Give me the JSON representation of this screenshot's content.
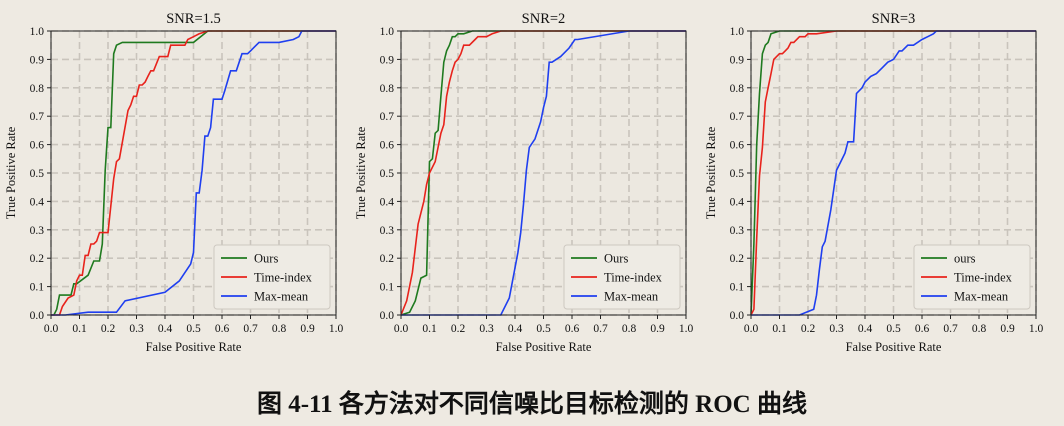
{
  "caption": "图 4-11 各方法对不同信噪比目标检测的 ROC 曲线",
  "chart_data": [
    {
      "type": "line",
      "title": "SNR=1.5",
      "xlabel": "False Positive Rate",
      "ylabel": "True Positive Rate",
      "xlim": [
        0,
        1
      ],
      "ylim": [
        0,
        1
      ],
      "xticks": [
        "0.0",
        "0.1",
        "0.2",
        "0.3",
        "0.4",
        "0.5",
        "0.6",
        "0.7",
        "0.8",
        "0.9",
        "1.0"
      ],
      "yticks": [
        "0.0",
        "0.1",
        "0.2",
        "0.3",
        "0.4",
        "0.5",
        "0.6",
        "0.7",
        "0.8",
        "0.9",
        "1.0"
      ],
      "grid": true,
      "legend_position": "lower-right",
      "series": [
        {
          "name": "Ours",
          "color": "#1f7a1f",
          "x": [
            0.0,
            0.01,
            0.02,
            0.03,
            0.07,
            0.08,
            0.09,
            0.13,
            0.15,
            0.17,
            0.18,
            0.19,
            0.2,
            0.21,
            0.22,
            0.23,
            0.25,
            0.5,
            0.55,
            1.0
          ],
          "y": [
            0.0,
            0.0,
            0.02,
            0.07,
            0.07,
            0.11,
            0.11,
            0.14,
            0.19,
            0.19,
            0.25,
            0.51,
            0.66,
            0.66,
            0.92,
            0.95,
            0.96,
            0.96,
            1.0,
            1.0
          ]
        },
        {
          "name": "Time-index",
          "color": "#e8231c",
          "x": [
            0.0,
            0.03,
            0.04,
            0.06,
            0.08,
            0.09,
            0.1,
            0.11,
            0.12,
            0.13,
            0.14,
            0.15,
            0.16,
            0.17,
            0.18,
            0.2,
            0.22,
            0.23,
            0.24,
            0.27,
            0.28,
            0.29,
            0.3,
            0.31,
            0.32,
            0.33,
            0.34,
            0.35,
            0.36,
            0.38,
            0.39,
            0.41,
            0.42,
            0.47,
            0.48,
            0.5,
            0.52,
            0.55,
            1.0
          ],
          "y": [
            0.0,
            0.0,
            0.03,
            0.06,
            0.07,
            0.12,
            0.14,
            0.14,
            0.21,
            0.21,
            0.25,
            0.25,
            0.26,
            0.29,
            0.29,
            0.29,
            0.48,
            0.54,
            0.55,
            0.72,
            0.74,
            0.77,
            0.77,
            0.81,
            0.81,
            0.82,
            0.84,
            0.86,
            0.86,
            0.91,
            0.91,
            0.91,
            0.95,
            0.95,
            0.97,
            0.98,
            0.99,
            1.0,
            1.0
          ]
        },
        {
          "name": "Max-mean",
          "color": "#1f3ff0",
          "x": [
            0.0,
            0.05,
            0.13,
            0.23,
            0.26,
            0.4,
            0.45,
            0.49,
            0.5,
            0.51,
            0.52,
            0.53,
            0.54,
            0.55,
            0.56,
            0.57,
            0.6,
            0.61,
            0.63,
            0.65,
            0.67,
            0.69,
            0.7,
            0.73,
            0.74,
            0.75,
            0.8,
            0.85,
            0.87,
            0.88,
            0.9,
            1.0
          ],
          "y": [
            0.0,
            0.0,
            0.01,
            0.01,
            0.05,
            0.08,
            0.12,
            0.18,
            0.22,
            0.43,
            0.43,
            0.51,
            0.63,
            0.63,
            0.66,
            0.76,
            0.76,
            0.79,
            0.86,
            0.86,
            0.92,
            0.92,
            0.93,
            0.96,
            0.96,
            0.96,
            0.96,
            0.97,
            0.98,
            1.0,
            1.0,
            1.0
          ]
        }
      ]
    },
    {
      "type": "line",
      "title": "SNR=2",
      "xlabel": "False Positive Rate",
      "ylabel": "True Positive Rate",
      "xlim": [
        0,
        1
      ],
      "ylim": [
        0,
        1
      ],
      "xticks": [
        "0.0",
        "0.1",
        "0.2",
        "0.3",
        "0.4",
        "0.5",
        "0.6",
        "0.7",
        "0.8",
        "0.9",
        "1.0"
      ],
      "yticks": [
        "0.0",
        "0.1",
        "0.2",
        "0.3",
        "0.4",
        "0.5",
        "0.6",
        "0.7",
        "0.8",
        "0.9",
        "1.0"
      ],
      "grid": true,
      "legend_position": "lower-right",
      "series": [
        {
          "name": "Ours",
          "color": "#1f7a1f",
          "x": [
            0.0,
            0.03,
            0.05,
            0.07,
            0.09,
            0.1,
            0.11,
            0.12,
            0.13,
            0.14,
            0.15,
            0.16,
            0.17,
            0.18,
            0.19,
            0.2,
            0.22,
            0.25,
            0.3,
            0.32,
            1.0
          ],
          "y": [
            0.0,
            0.01,
            0.05,
            0.13,
            0.14,
            0.54,
            0.55,
            0.64,
            0.65,
            0.77,
            0.89,
            0.93,
            0.95,
            0.98,
            0.98,
            0.99,
            0.99,
            1.0,
            1.0,
            1.0,
            1.0
          ]
        },
        {
          "name": "Time-index",
          "color": "#e8231c",
          "x": [
            0.0,
            0.02,
            0.04,
            0.06,
            0.08,
            0.09,
            0.1,
            0.12,
            0.14,
            0.15,
            0.16,
            0.17,
            0.18,
            0.19,
            0.2,
            0.21,
            0.22,
            0.24,
            0.26,
            0.27,
            0.29,
            0.3,
            0.32,
            0.35,
            0.38,
            0.4,
            1.0
          ],
          "y": [
            0.0,
            0.05,
            0.15,
            0.32,
            0.4,
            0.46,
            0.5,
            0.54,
            0.64,
            0.67,
            0.77,
            0.82,
            0.86,
            0.89,
            0.9,
            0.92,
            0.95,
            0.95,
            0.97,
            0.98,
            0.98,
            0.98,
            0.99,
            1.0,
            1.0,
            1.0,
            1.0
          ]
        },
        {
          "name": "Max-mean",
          "color": "#1f3ff0",
          "x": [
            0.0,
            0.35,
            0.38,
            0.41,
            0.42,
            0.43,
            0.44,
            0.45,
            0.47,
            0.48,
            0.49,
            0.5,
            0.51,
            0.52,
            0.53,
            0.56,
            0.57,
            0.59,
            0.61,
            0.62,
            0.8,
            1.0
          ],
          "y": [
            0.0,
            0.0,
            0.06,
            0.22,
            0.29,
            0.39,
            0.51,
            0.59,
            0.62,
            0.65,
            0.68,
            0.73,
            0.77,
            0.89,
            0.89,
            0.91,
            0.92,
            0.94,
            0.97,
            0.97,
            1.0,
            1.0
          ]
        }
      ]
    },
    {
      "type": "line",
      "title": "SNR=3",
      "xlabel": "False Positive Rate",
      "ylabel": "True Positive Rate",
      "xlim": [
        0,
        1
      ],
      "ylim": [
        0,
        1
      ],
      "xticks": [
        "0.0",
        "0.1",
        "0.2",
        "0.3",
        "0.4",
        "0.5",
        "0.6",
        "0.7",
        "0.8",
        "0.9",
        "1.0"
      ],
      "yticks": [
        "0.0",
        "0.1",
        "0.2",
        "0.3",
        "0.4",
        "0.5",
        "0.6",
        "0.7",
        "0.8",
        "0.9",
        "1.0"
      ],
      "grid": true,
      "legend_position": "lower-right",
      "series": [
        {
          "name": "ours",
          "color": "#1f7a1f",
          "x": [
            0.0,
            0.01,
            0.02,
            0.03,
            0.04,
            0.05,
            0.06,
            0.07,
            0.1,
            0.2,
            0.4,
            0.58,
            1.0
          ],
          "y": [
            0.0,
            0.25,
            0.6,
            0.78,
            0.92,
            0.95,
            0.96,
            0.99,
            1.0,
            1.0,
            1.0,
            1.0,
            1.0
          ]
        },
        {
          "name": "Time-index",
          "color": "#e8231c",
          "x": [
            0.0,
            0.01,
            0.02,
            0.03,
            0.04,
            0.05,
            0.06,
            0.07,
            0.08,
            0.09,
            0.1,
            0.11,
            0.12,
            0.13,
            0.14,
            0.15,
            0.17,
            0.19,
            0.2,
            0.23,
            0.3,
            0.4,
            0.5,
            1.0
          ],
          "y": [
            0.0,
            0.02,
            0.27,
            0.49,
            0.59,
            0.75,
            0.8,
            0.85,
            0.9,
            0.91,
            0.92,
            0.92,
            0.93,
            0.94,
            0.96,
            0.96,
            0.98,
            0.98,
            0.99,
            0.99,
            1.0,
            1.0,
            1.0,
            1.0
          ]
        },
        {
          "name": "Max-mean",
          "color": "#1f3ff0",
          "x": [
            0.0,
            0.17,
            0.22,
            0.23,
            0.24,
            0.25,
            0.26,
            0.28,
            0.3,
            0.31,
            0.33,
            0.34,
            0.36,
            0.37,
            0.39,
            0.4,
            0.42,
            0.44,
            0.46,
            0.48,
            0.5,
            0.52,
            0.53,
            0.55,
            0.57,
            0.6,
            0.62,
            0.64,
            0.65,
            0.67,
            1.0
          ],
          "y": [
            0.0,
            0.0,
            0.02,
            0.07,
            0.16,
            0.24,
            0.26,
            0.37,
            0.51,
            0.53,
            0.57,
            0.61,
            0.61,
            0.78,
            0.8,
            0.82,
            0.84,
            0.85,
            0.87,
            0.89,
            0.9,
            0.93,
            0.93,
            0.95,
            0.95,
            0.97,
            0.98,
            0.99,
            1.0,
            1.0,
            1.0
          ]
        }
      ]
    }
  ]
}
